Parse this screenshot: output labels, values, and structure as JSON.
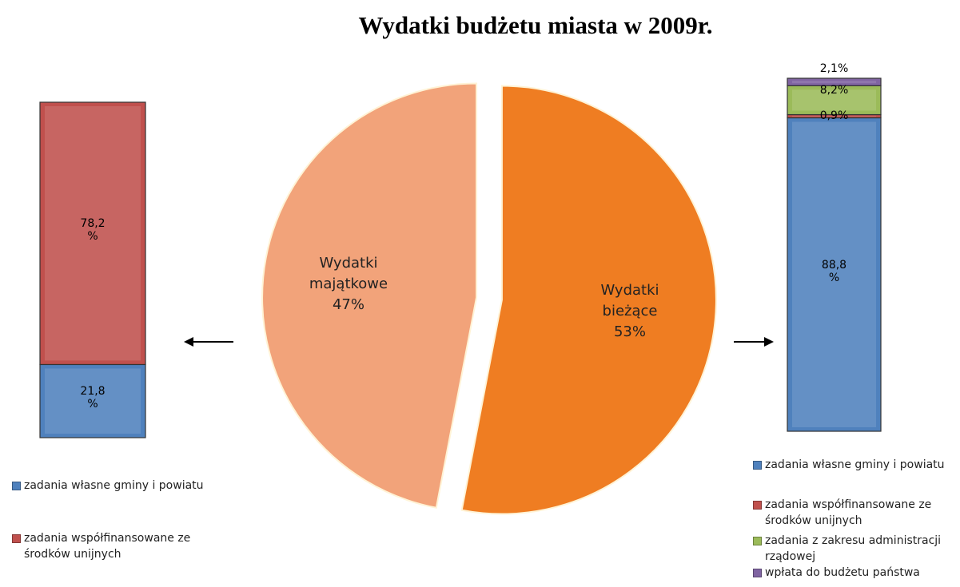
{
  "chart_data": [
    {
      "type": "pie",
      "title": "Wydatki budżetu miasta w 2009r.",
      "categories": [
        "Wydatki majątkowe",
        "Wydatki bieżące"
      ],
      "values": [
        47,
        53
      ],
      "value_labels": [
        "47%",
        "53%"
      ],
      "colors": [
        "#f2a37a",
        "#ef7d22"
      ]
    },
    {
      "type": "stacked_bar",
      "series": [
        {
          "name": "zadania własne gminy i powiatu",
          "color": "#4f81bd",
          "values": [
            21.8
          ],
          "value_labels": [
            "21,8 %"
          ]
        },
        {
          "name": "zadania współfinansowane ze środków unijnych",
          "color": "#c0504d",
          "values": [
            78.2
          ],
          "value_labels": [
            "78,2 %"
          ]
        }
      ]
    },
    {
      "type": "stacked_bar",
      "series": [
        {
          "name": "zadania własne gminy i powiatu",
          "color": "#4f81bd",
          "values": [
            88.8
          ],
          "value_labels": [
            "88,8 %"
          ]
        },
        {
          "name": "zadania współfinansowane ze środków unijnych",
          "color": "#c0504d",
          "values": [
            0.9
          ],
          "value_labels": [
            "0,9%"
          ]
        },
        {
          "name": "zadania z zakresu administracji rządowej",
          "color": "#9bbb59",
          "values": [
            8.2
          ],
          "value_labels": [
            "8,2%"
          ]
        },
        {
          "name": "wpłata do budżetu państwa",
          "color": "#8064a2",
          "values": [
            2.1
          ],
          "value_labels": [
            "2,1%"
          ]
        }
      ]
    }
  ]
}
